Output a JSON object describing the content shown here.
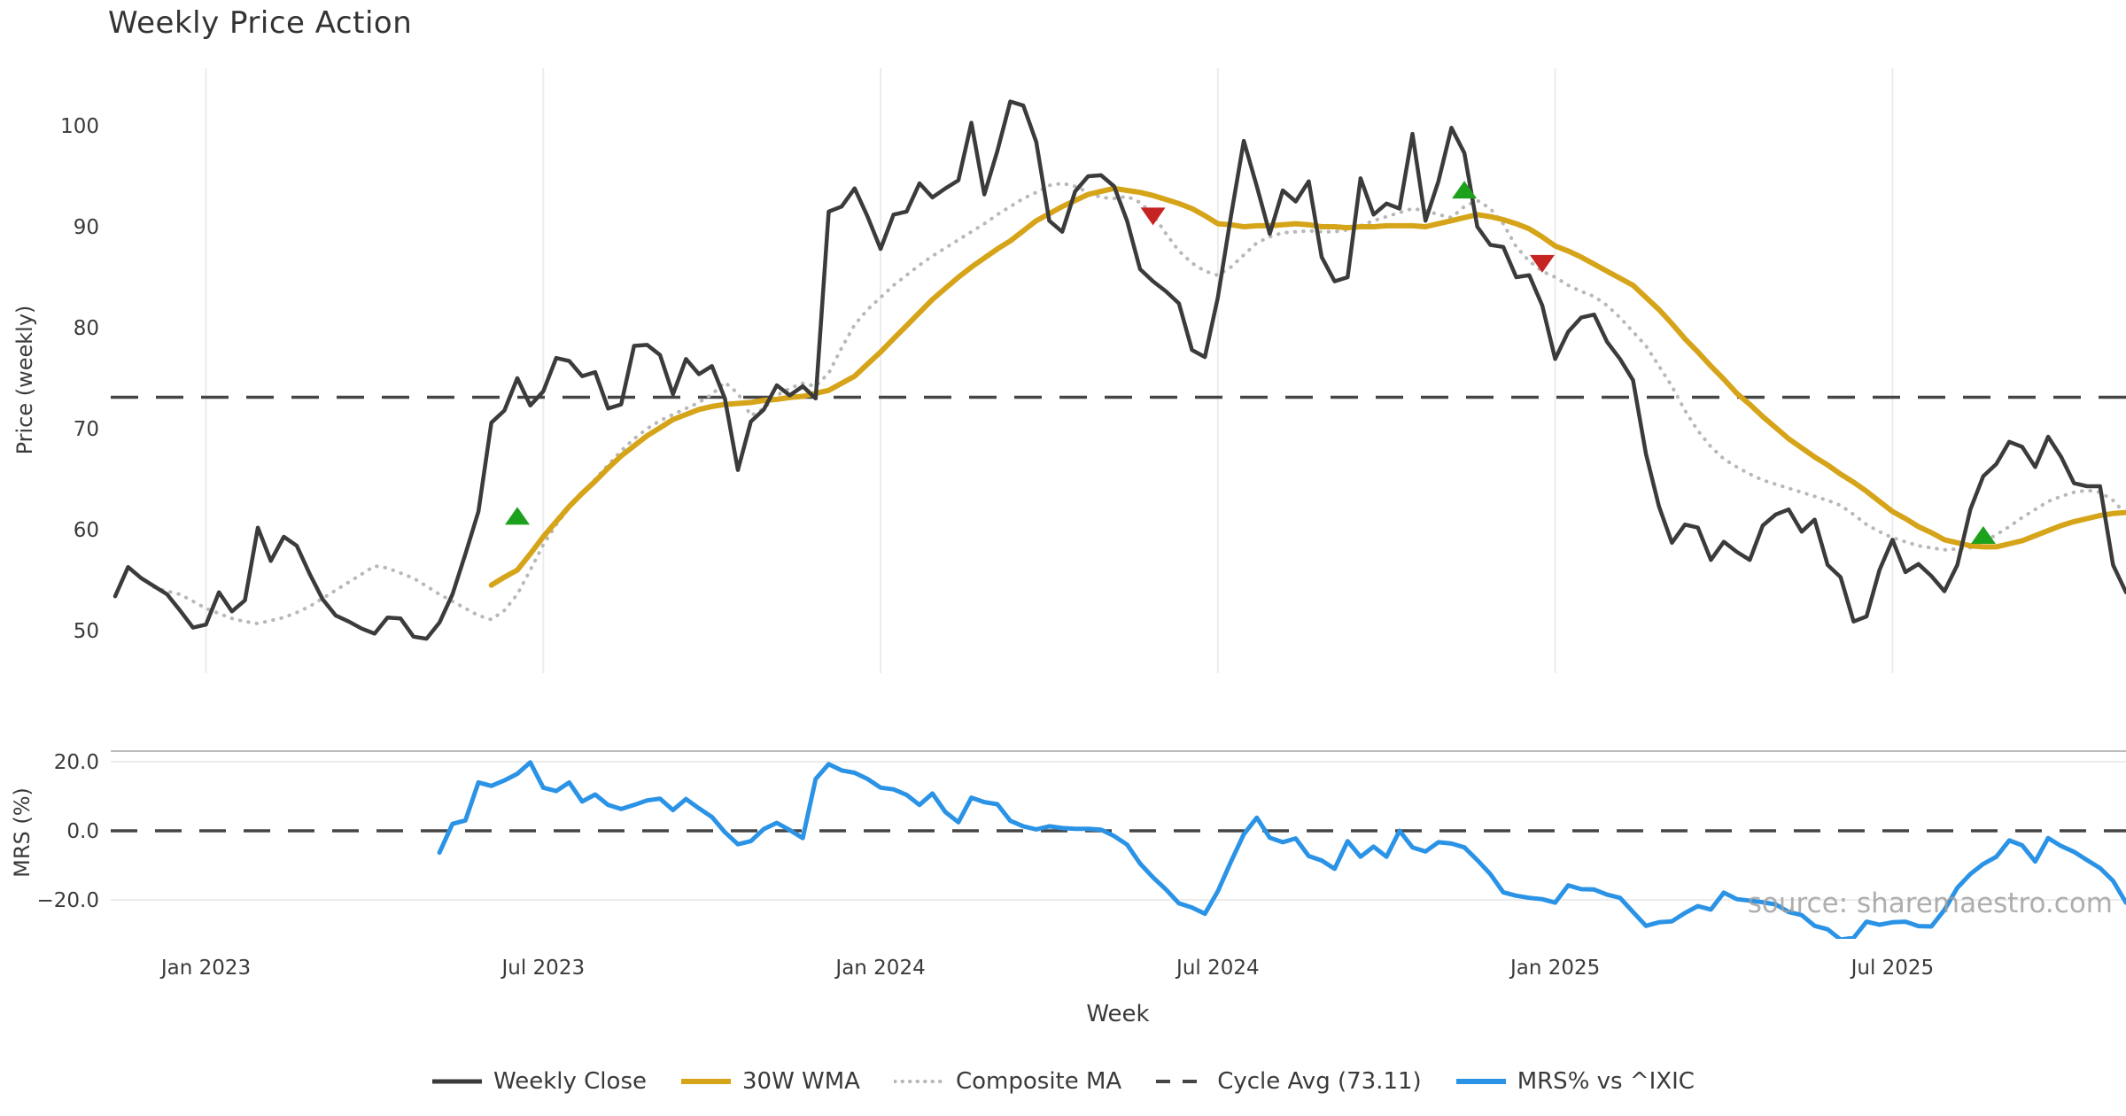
{
  "chart_data": {
    "type": "line",
    "title": "Weekly Price Action",
    "xlabel": "Week",
    "watermark": "source: sharemaestro.com",
    "x_axis": {
      "unit": "week_index",
      "ticks": [
        {
          "week": 7,
          "label": "Jan 2023"
        },
        {
          "week": 33,
          "label": "Jul 2023"
        },
        {
          "week": 59,
          "label": "Jan 2024"
        },
        {
          "week": 85,
          "label": "Jul 2024"
        },
        {
          "week": 111,
          "label": "Jan 2025"
        },
        {
          "week": 137,
          "label": "Jul 2025"
        }
      ]
    },
    "panels": [
      {
        "name": "price",
        "ylabel": "Price (weekly)",
        "yticks": [
          50,
          60,
          70,
          80,
          90,
          100
        ],
        "ylim": [
          45.8,
          105.7
        ],
        "grid": "vertical-only"
      },
      {
        "name": "mrs",
        "ylabel": "MRS (%)",
        "ytick_labels": [
          "20.0",
          "0.0",
          "−20.0"
        ],
        "ytick_values": [
          20,
          0,
          -20
        ],
        "ylim": [
          -31.6,
          23.1
        ],
        "grid": "horizontal-only"
      }
    ],
    "series": [
      {
        "name": "Weekly Close",
        "panel": 0,
        "style": "solid",
        "color": "#3b3b3b",
        "width": 4.5,
        "start_week": 0,
        "values": [
          53.4,
          56.3,
          55.2,
          54.4,
          53.6,
          52.0,
          50.3,
          50.6,
          53.8,
          51.9,
          53.0,
          60.2,
          56.9,
          59.3,
          58.4,
          55.6,
          53.1,
          51.5,
          50.9,
          50.2,
          49.7,
          51.3,
          51.2,
          49.4,
          49.2,
          50.8,
          53.6,
          57.6,
          61.8,
          70.6,
          71.8,
          75.0,
          72.3,
          73.7,
          77.0,
          76.7,
          75.2,
          75.6,
          72.0,
          72.4,
          78.2,
          78.3,
          77.3,
          73.4,
          76.9,
          75.4,
          76.2,
          73.0,
          65.9,
          70.7,
          71.9,
          74.3,
          73.3,
          74.2,
          73.0,
          91.5,
          92.0,
          93.8,
          91.0,
          87.8,
          91.2,
          91.5,
          94.3,
          92.9,
          93.8,
          94.6,
          100.3,
          93.2,
          97.5,
          102.4,
          102.0,
          98.4,
          90.6,
          89.5,
          93.5,
          95.0,
          95.1,
          94.0,
          90.6,
          85.8,
          84.6,
          83.6,
          82.4,
          77.8,
          77.1,
          83.0,
          91.0,
          98.5,
          94.0,
          89.3,
          93.6,
          92.5,
          94.5,
          87.0,
          84.6,
          85.0,
          94.8,
          91.2,
          92.3,
          91.8,
          99.2,
          90.6,
          94.5,
          99.8,
          97.3,
          90.0,
          88.2,
          88.0,
          85.0,
          85.2,
          82.2,
          76.9,
          79.6,
          81.0,
          81.3,
          78.6,
          76.9,
          74.8,
          67.5,
          62.3,
          58.7,
          60.5,
          60.2,
          57.0,
          58.8,
          57.8,
          57.0,
          60.4,
          61.5,
          62.0,
          59.8,
          61.0,
          56.5,
          55.3,
          50.9,
          51.4,
          56.0,
          59.0,
          55.8,
          56.6,
          55.4,
          53.9,
          56.5,
          62.0,
          65.3,
          66.5,
          68.7,
          68.2,
          66.2,
          69.2,
          67.2,
          64.6,
          64.3,
          64.3,
          56.5,
          53.8
        ]
      },
      {
        "name": "30W WMA",
        "panel": 0,
        "style": "solid",
        "color": "#d6a419",
        "width": 6,
        "start_week": 29,
        "values": [
          54.5,
          55.3,
          56.0,
          57.6,
          59.3,
          60.8,
          62.3,
          63.6,
          64.8,
          66.1,
          67.3,
          68.3,
          69.3,
          70.1,
          70.9,
          71.4,
          71.9,
          72.2,
          72.4,
          72.5,
          72.6,
          72.8,
          72.9,
          73.1,
          73.2,
          73.5,
          73.8,
          74.5,
          75.2,
          76.4,
          77.6,
          78.9,
          80.2,
          81.5,
          82.8,
          83.9,
          85.0,
          86.0,
          86.9,
          87.8,
          88.6,
          89.6,
          90.6,
          91.3,
          92.0,
          92.6,
          93.2,
          93.5,
          93.8,
          93.6,
          93.4,
          93.1,
          92.7,
          92.3,
          91.8,
          91.1,
          90.3,
          90.2,
          90.0,
          90.1,
          90.1,
          90.2,
          90.3,
          90.2,
          90.0,
          90.0,
          89.9,
          90.0,
          90.0,
          90.1,
          90.1,
          90.1,
          90.0,
          90.3,
          90.6,
          90.9,
          91.2,
          91.0,
          90.7,
          90.3,
          89.8,
          89.0,
          88.1,
          87.6,
          87.0,
          86.3,
          85.6,
          84.9,
          84.2,
          83.0,
          81.8,
          80.4,
          78.9,
          77.6,
          76.2,
          74.9,
          73.5,
          72.4,
          71.2,
          70.1,
          69.0,
          68.1,
          67.2,
          66.4,
          65.5,
          64.7,
          63.8,
          62.8,
          61.8,
          61.1,
          60.3,
          59.7,
          59.0,
          58.7,
          58.4,
          58.3,
          58.3,
          58.6,
          58.9,
          59.4,
          59.9,
          60.4,
          60.8,
          61.1,
          61.4,
          61.6,
          61.7
        ]
      },
      {
        "name": "Composite MA",
        "panel": 0,
        "style": "dotted",
        "color": "#b8b8b8",
        "width": 4,
        "start_week": 3,
        "values": [
          54.3,
          53.9,
          53.6,
          52.9,
          52.2,
          51.7,
          51.2,
          50.9,
          50.7,
          51.0,
          51.3,
          51.8,
          52.4,
          53.2,
          54.0,
          54.8,
          55.6,
          56.4,
          56.2,
          55.7,
          55.2,
          54.4,
          53.6,
          52.9,
          52.2,
          51.5,
          51.1,
          52.0,
          53.6,
          56.0,
          58.5,
          60.5,
          62.2,
          63.6,
          65.0,
          66.4,
          67.8,
          69.0,
          70.0,
          70.8,
          71.4,
          72.0,
          72.6,
          73.4,
          74.6,
          73.5,
          71.3,
          72.0,
          73.3,
          74.0,
          74.5,
          74.2,
          75.5,
          78.0,
          80.3,
          81.8,
          83.0,
          84.2,
          85.2,
          86.2,
          87.1,
          87.9,
          88.7,
          89.5,
          90.3,
          91.2,
          92.0,
          92.8,
          93.4,
          94.1,
          94.3,
          94.0,
          93.4,
          92.9,
          92.8,
          93.0,
          92.4,
          91.2,
          89.3,
          87.6,
          86.4,
          85.6,
          85.2,
          86.0,
          87.2,
          88.4,
          89.0,
          89.4,
          89.5,
          89.6,
          89.5,
          89.5,
          89.7,
          90.1,
          90.6,
          91.0,
          91.4,
          91.8,
          91.6,
          91.2,
          90.9,
          92.0,
          92.6,
          91.8,
          90.3,
          88.0,
          86.6,
          85.6,
          85.0,
          84.2,
          83.6,
          83.1,
          82.2,
          81.0,
          79.6,
          78.2,
          76.2,
          74.2,
          71.8,
          69.8,
          68.2,
          67.0,
          66.2,
          65.5,
          64.9,
          64.5,
          64.1,
          63.7,
          63.3,
          62.9,
          62.4,
          61.5,
          60.5,
          59.8,
          59.2,
          58.8,
          58.4,
          58.2,
          58.0,
          58.1,
          58.2,
          58.8,
          59.5,
          60.3,
          61.2,
          62.0,
          62.8,
          63.3,
          63.7,
          63.9,
          63.7,
          62.9,
          61.5
        ]
      },
      {
        "name": "Cycle Avg (73.11)",
        "panel": 0,
        "style": "dashed",
        "color": "#454545",
        "width": 3.5,
        "constant": 73.11
      },
      {
        "name": "MRS% vs ^IXIC",
        "panel": 1,
        "style": "solid",
        "color": "#2b93e6",
        "width": 5,
        "start_week": 25,
        "values": [
          -6.3,
          2.0,
          3.0,
          14.0,
          13.0,
          14.6,
          16.5,
          19.8,
          12.5,
          11.5,
          14.0,
          8.5,
          10.5,
          7.5,
          6.3,
          7.5,
          8.8,
          9.3,
          6.0,
          9.2,
          6.5,
          4.0,
          -0.4,
          -3.9,
          -3.0,
          0.5,
          2.3,
          0.2,
          -2.1,
          15.0,
          19.3,
          17.5,
          16.8,
          15.0,
          12.5,
          12.0,
          10.4,
          7.5,
          10.8,
          5.4,
          2.5,
          9.6,
          8.3,
          7.7,
          2.9,
          1.3,
          0.4,
          1.3,
          0.8,
          0.6,
          0.6,
          0.3,
          -1.5,
          -4.0,
          -9.5,
          -13.5,
          -17.0,
          -21.0,
          -22.2,
          -24.0,
          -17.5,
          -9.0,
          -1.0,
          3.8,
          -2.0,
          -3.3,
          -2.2,
          -7.3,
          -8.6,
          -11.0,
          -3.0,
          -7.5,
          -4.6,
          -7.5,
          0.0,
          -4.8,
          -6.0,
          -3.3,
          -3.7,
          -4.8,
          -8.5,
          -12.5,
          -17.8,
          -18.8,
          -19.4,
          -19.8,
          -20.8,
          -15.8,
          -16.9,
          -17.0,
          -18.5,
          -19.4,
          -23.5,
          -27.5,
          -26.5,
          -26.2,
          -23.8,
          -21.8,
          -22.8,
          -17.9,
          -19.8,
          -20.2,
          -20.7,
          -21.3,
          -23.5,
          -24.4,
          -27.5,
          -28.5,
          -31.5,
          -31.0,
          -26.3,
          -27.2,
          -26.5,
          -26.3,
          -27.6,
          -27.7,
          -22.9,
          -16.5,
          -12.5,
          -9.6,
          -7.5,
          -2.8,
          -4.2,
          -8.9,
          -2.1,
          -4.4,
          -6.1,
          -8.5,
          -10.8,
          -14.5,
          -20.8
        ]
      }
    ],
    "markers": {
      "buy": {
        "symbol": "triangle-up",
        "color": "#1ca11c",
        "points": [
          {
            "week": 31,
            "value": 61.2
          },
          {
            "week": 104,
            "value": 93.5
          },
          {
            "week": 144,
            "value": 59.3
          }
        ]
      },
      "sell": {
        "symbol": "triangle-down",
        "color": "#c62323",
        "points": [
          {
            "week": 80,
            "value": 91.2
          },
          {
            "week": 110,
            "value": 86.5
          }
        ]
      }
    },
    "layout_colors": {
      "grid": "#ececec",
      "panel_border": "#bdbdbd",
      "tick_text": "#3a3a3a",
      "watermark_text": "#a0a0a0",
      "background": "#ffffff"
    }
  }
}
